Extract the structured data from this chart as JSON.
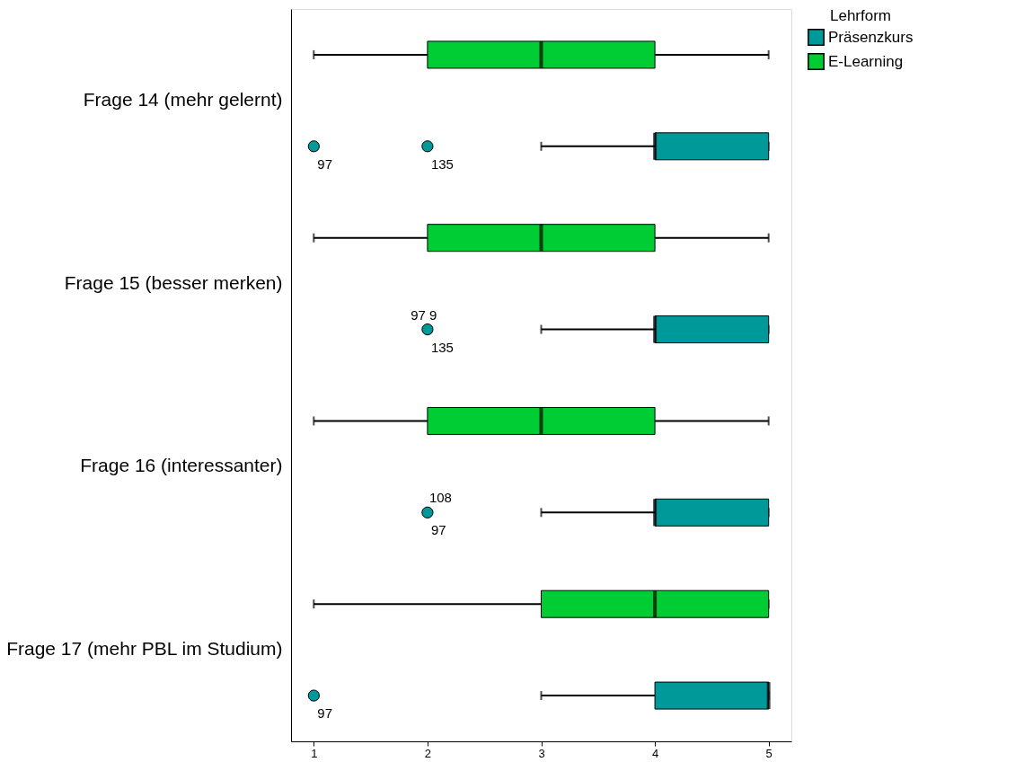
{
  "chart_data": {
    "type": "box",
    "orientation": "horizontal",
    "legend_title": "Lehrform",
    "legend": "top right",
    "grid": false,
    "categories": [
      "Frage 14 (mehr gelernt)",
      "Frage 15 (besser merken)",
      "Frage 16 (interessanter)",
      "Frage 17 (mehr PBL im Studium)"
    ],
    "xlim": [
      0.8,
      5.2
    ],
    "xticks": [
      1,
      2,
      3,
      4,
      5
    ],
    "series": [
      {
        "name": "Präsenzkurs",
        "color": "#009999",
        "boxes": [
          {
            "low": 3,
            "q1": 4,
            "median": 4,
            "q3": 5,
            "high": 5,
            "outliers": [
              1,
              2
            ]
          },
          {
            "low": 3,
            "q1": 4,
            "median": 4,
            "q3": 5,
            "high": 5,
            "outliers": [
              2
            ]
          },
          {
            "low": 3,
            "q1": 4,
            "median": 4,
            "q3": 5,
            "high": 5,
            "outliers": [
              2
            ]
          },
          {
            "low": 3,
            "q1": 4,
            "median": 5,
            "q3": 5,
            "high": 5,
            "outliers": [
              1
            ]
          }
        ]
      },
      {
        "name": "E-Learning",
        "color": "#00cc33",
        "boxes": [
          {
            "low": 1,
            "q1": 2,
            "median": 3,
            "q3": 4,
            "high": 5
          },
          {
            "low": 1,
            "q1": 2,
            "median": 3,
            "q3": 4,
            "high": 5
          },
          {
            "low": 1,
            "q1": 2,
            "median": 3,
            "q3": 4,
            "high": 5
          },
          {
            "low": 1,
            "q1": 3,
            "median": 4,
            "q3": 5,
            "high": 5
          }
        ]
      }
    ],
    "annotations": [
      "97",
      "135",
      "97",
      "9",
      "135",
      "108",
      "97",
      "97"
    ]
  }
}
